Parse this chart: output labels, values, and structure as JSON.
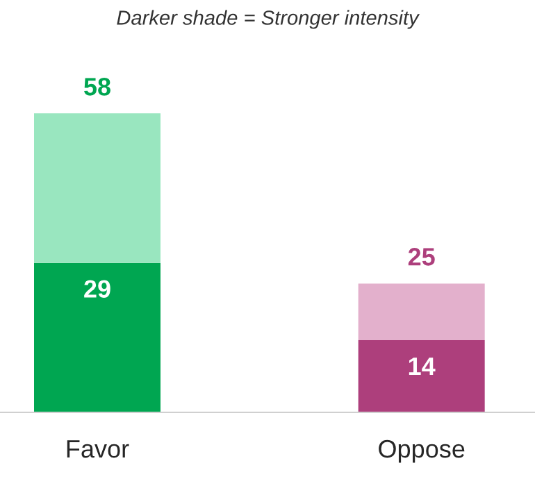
{
  "chart_data": {
    "type": "bar",
    "stacked": true,
    "annotations": [
      "Darker shade = Stronger intensity"
    ],
    "categories": [
      "Favor",
      "Oppose"
    ],
    "series": [
      {
        "colors": [
          "#00a651",
          "#ad3f7c"
        ],
        "values": [
          29,
          14
        ],
        "value_labels": [
          "29",
          "14"
        ]
      },
      {
        "colors": [
          "#99e6bf",
          "#e3b0cc"
        ],
        "values": [
          29,
          11
        ]
      }
    ],
    "totals": [
      "58",
      "25"
    ],
    "grid": false,
    "legend": false
  }
}
